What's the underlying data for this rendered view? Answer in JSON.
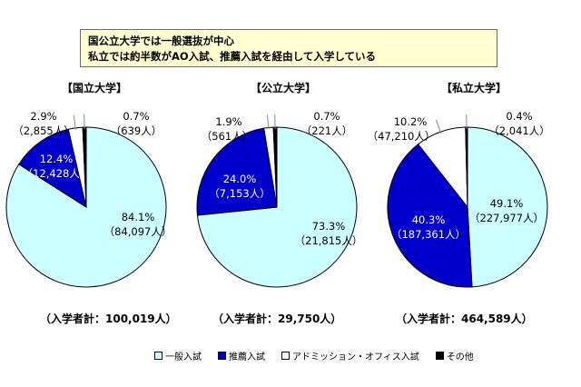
{
  "note": {
    "line1": "国公立大学では一般選抜が中心",
    "line2": "私立では約半数がAO入試、推薦入試を経由して入学している"
  },
  "legend": [
    {
      "label": "一般入試",
      "color": "#ccffff"
    },
    {
      "label": "推薦入試",
      "color": "#0000cc"
    },
    {
      "label": "アドミッション・オフィス入試",
      "color": "#ffffff"
    },
    {
      "label": "その他",
      "color": "#000000"
    }
  ],
  "chart_data": [
    {
      "type": "pie",
      "title": "【国立大学】",
      "total": "（入学者計：100,019人）",
      "slices": [
        {
          "category": "一般入試",
          "pct": 84.1,
          "count": 84097,
          "pct_label": "84.1%",
          "count_label": "（84,097人）"
        },
        {
          "category": "推薦入試",
          "pct": 12.4,
          "count": 12428,
          "pct_label": "12.4%",
          "count_label": "（12,428人）"
        },
        {
          "category": "アドミッション・オフィス入試",
          "pct": 2.9,
          "count": 2855,
          "pct_label": "2.9%",
          "count_label": "（2,855人）"
        },
        {
          "category": "その他",
          "pct": 0.7,
          "count": 639,
          "pct_label": "0.7%",
          "count_label": "（639人）"
        }
      ]
    },
    {
      "type": "pie",
      "title": "【公立大学】",
      "total": "（入学者計：29,750人）",
      "slices": [
        {
          "category": "一般入試",
          "pct": 73.3,
          "count": 21815,
          "pct_label": "73.3%",
          "count_label": "（21,815人）"
        },
        {
          "category": "推薦入試",
          "pct": 24.0,
          "count": 7153,
          "pct_label": "24.0%",
          "count_label": "（7,153人）"
        },
        {
          "category": "アドミッション・オフィス入試",
          "pct": 1.9,
          "count": 561,
          "pct_label": "1.9%",
          "count_label": "（561人）"
        },
        {
          "category": "その他",
          "pct": 0.7,
          "count": 221,
          "pct_label": "0.7%",
          "count_label": "（221人）"
        }
      ]
    },
    {
      "type": "pie",
      "title": "【私立大学】",
      "total": "（入学者計：464,589人）",
      "slices": [
        {
          "category": "一般入試",
          "pct": 49.1,
          "count": 227977,
          "pct_label": "49.1%",
          "count_label": "（227,977人）"
        },
        {
          "category": "推薦入試",
          "pct": 40.3,
          "count": 187361,
          "pct_label": "40.3%",
          "count_label": "（187,361人）"
        },
        {
          "category": "アドミッション・オフィス入試",
          "pct": 10.2,
          "count": 47210,
          "pct_label": "10.2%",
          "count_label": "（47,210人）"
        },
        {
          "category": "その他",
          "pct": 0.4,
          "count": 2041,
          "pct_label": "0.4%",
          "count_label": "（2,041人）"
        }
      ]
    }
  ]
}
